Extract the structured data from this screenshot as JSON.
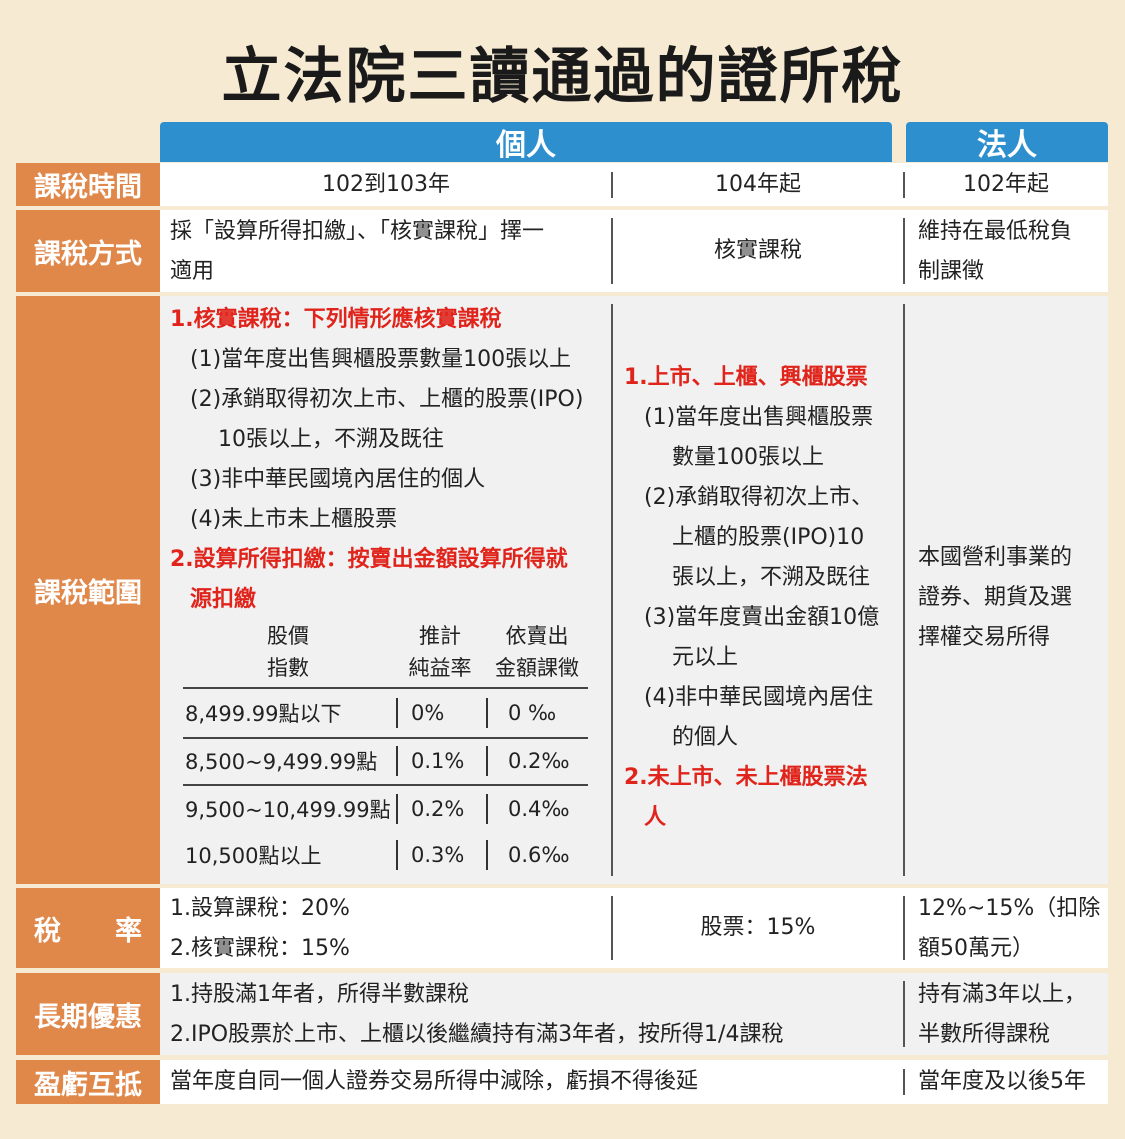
{
  "title": "立法院三讀通過的證所稅",
  "headers": {
    "individual": "個人",
    "corporate": "法人"
  },
  "rows": {
    "period": {
      "label": "課稅時間",
      "c1": "102到103年",
      "c2": "104年起",
      "c3": "102年起"
    },
    "method": {
      "label": "課稅方式",
      "c1_lines": [
        "採「設算所得扣繳」、「核實課稅」擇一",
        "適用"
      ],
      "c2": "核實課稅",
      "c3_lines": [
        "維持在最低稅負",
        "制課徵"
      ]
    },
    "scope": {
      "label": "課稅範圍",
      "c1": {
        "h1": "1.核實課稅：下列情形應核實課稅",
        "items": [
          "(1)當年度出售興櫃股票數量100張以上",
          "(2)承銷取得初次上市、上櫃的股票(IPO)",
          "10張以上，不溯及既往",
          "(3)非中華民國境內居住的個人",
          "(4)未上市未上櫃股票"
        ],
        "h2a": "2.設算所得扣繳：按賣出金額設算所得就",
        "h2b": "源扣繳",
        "table": {
          "col1": [
            "股價",
            "指數"
          ],
          "col2": [
            "推計",
            "純益率"
          ],
          "col3": [
            "依賣出",
            "金額課徵"
          ],
          "rows": [
            [
              "8,499.99點以下",
              "0%",
              "0 ‰"
            ],
            [
              "8,500~9,499.99點",
              "0.1%",
              "0.2‰"
            ],
            [
              "9,500~10,499.99點",
              "0.2%",
              "0.4‰"
            ],
            [
              "10,500點以上",
              "0.3%",
              "0.6‰"
            ]
          ]
        }
      },
      "c2": {
        "h1": "1.上市、上櫃、興櫃股票",
        "lines": [
          "(1)當年度出售興櫃股票",
          "數量100張以上",
          "(2)承銷取得初次上市、",
          "上櫃的股票(IPO)10",
          "張以上，不溯及既往",
          "(3)當年度賣出金額10億",
          "元以上",
          "(4)非中華民國境內居住",
          "的個人"
        ],
        "h2a": "2.未上市、未上櫃股票法",
        "h2b": "人"
      },
      "c3_lines": [
        "本國營利事業的",
        "證券、期貨及選",
        "擇權交易所得"
      ]
    },
    "rate": {
      "label": "稅　　率",
      "c1_lines": [
        "1.設算課稅：20%",
        "2.核實課稅：15%"
      ],
      "c2": "股票：15%",
      "c3_lines": [
        "12%~15%（扣除",
        "額50萬元）"
      ]
    },
    "longterm": {
      "label": "長期優惠",
      "c1_lines": [
        "1.持股滿1年者，所得半數課稅",
        "2.IPO股票於上市、上櫃以後繼續持有滿3年者，按所得1/4課稅"
      ],
      "c3_lines": [
        "持有滿3年以上，",
        "半數所得課稅"
      ]
    },
    "offset": {
      "label": "盈虧互抵",
      "c1": "當年度自同一個人證券交易所得中減除，虧損不得後延",
      "c3": "當年度及以後5年"
    }
  }
}
